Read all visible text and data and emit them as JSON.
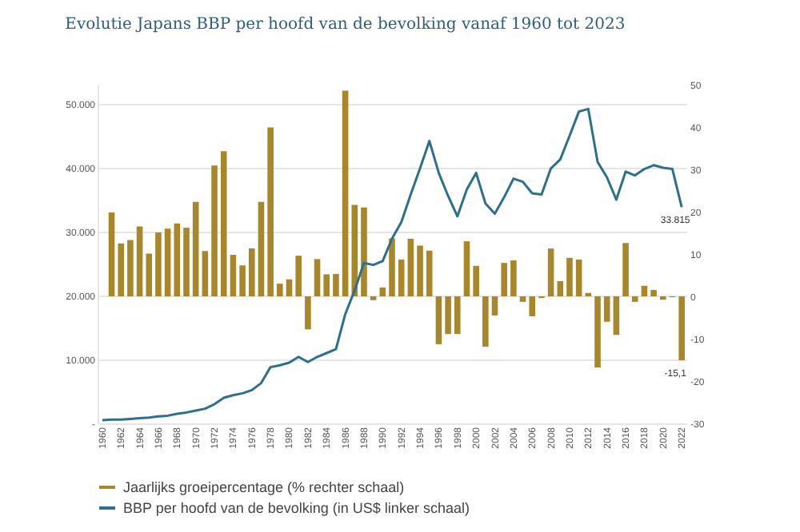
{
  "chart_data": {
    "type": "bar",
    "title": "Evolutie Japans BBP per hoofd van de bevolking vanaf 1960 tot 2023",
    "categories": [
      "1960",
      null,
      "1962",
      null,
      "1964",
      null,
      "1966",
      null,
      "1968",
      null,
      "1970",
      null,
      "1972",
      null,
      "1974",
      null,
      "1976",
      null,
      "1978",
      null,
      "1980",
      null,
      "1982",
      null,
      "1984",
      null,
      "1986",
      null,
      "1988",
      null,
      "1990",
      null,
      "1992",
      null,
      "1994",
      null,
      "1996",
      null,
      "1998",
      null,
      "2000",
      null,
      "2002",
      null,
      "2004",
      null,
      "2006",
      null,
      "2008",
      null,
      "2010",
      null,
      "2012",
      null,
      "2014",
      null,
      "2016",
      null,
      "2018",
      null,
      "2020",
      null,
      "2022"
    ],
    "series": [
      {
        "name": "Jaarlijks groeipercentage (% rechter schaal)",
        "axis": "y2",
        "color": "#a8862a",
        "values": [
          null,
          19.8,
          12.5,
          13.3,
          16.5,
          10.1,
          15.1,
          16.0,
          17.2,
          16.2,
          22.3,
          10.7,
          30.9,
          34.3,
          9.8,
          7.3,
          11.3,
          22.3,
          39.9,
          3.0,
          4.0,
          9.6,
          -7.8,
          8.8,
          5.2,
          5.3,
          48.6,
          21.6,
          21.0,
          -0.9,
          2.1,
          13.7,
          8.7,
          13.6,
          12.0,
          10.8,
          -11.3,
          -8.9,
          -8.9,
          13.0,
          7.2,
          -11.9,
          -4.5,
          7.9,
          8.5,
          -1.3,
          -4.7,
          -0.4,
          11.3,
          3.6,
          9.1,
          8.7,
          0.8,
          -16.8,
          -6.0,
          -9.1,
          12.6,
          -1.3,
          2.5,
          1.5,
          -0.8,
          -0.2,
          -15.1
        ]
      },
      {
        "name": "BBP per hoofd van de bevolking (in US$ linker schaal)",
        "type": "line",
        "color": "#2e6f8e",
        "values": [
          500,
          600,
          600,
          700,
          800,
          900,
          1100,
          1200,
          1500,
          1700,
          2000,
          2300,
          3000,
          4000,
          4400,
          4700,
          5200,
          6300,
          8800,
          9100,
          9500,
          10400,
          9600,
          10400,
          11000,
          11600,
          17100,
          20800,
          25100,
          24800,
          25400,
          28900,
          31500,
          35800,
          39900,
          44200,
          39200,
          35600,
          32400,
          36600,
          39200,
          34400,
          32800,
          35400,
          38300,
          37800,
          36000,
          35800,
          39900,
          41300,
          45000,
          48800,
          49200,
          40900,
          38500,
          35000,
          39400,
          38800,
          39800,
          40400,
          40000,
          39800,
          33815
        ]
      }
    ],
    "ylim": [
      0,
      53000
    ],
    "yticks": [
      {
        "value": 0,
        "label": "-"
      },
      {
        "value": 10000,
        "label": "10.000"
      },
      {
        "value": 20000,
        "label": "20.000"
      },
      {
        "value": 30000,
        "label": "30.000"
      },
      {
        "value": 40000,
        "label": "40.000"
      },
      {
        "value": 50000,
        "label": "50.000"
      }
    ],
    "y2lim": [
      -30,
      50
    ],
    "y2ticks": [
      -30,
      -20,
      -10,
      0,
      10,
      20,
      30,
      40,
      50
    ],
    "annotations": [
      {
        "text": "33.815",
        "x": "2022",
        "y": 33815
      },
      "-15,1"
    ],
    "grid": "y",
    "legend": "bottom"
  }
}
